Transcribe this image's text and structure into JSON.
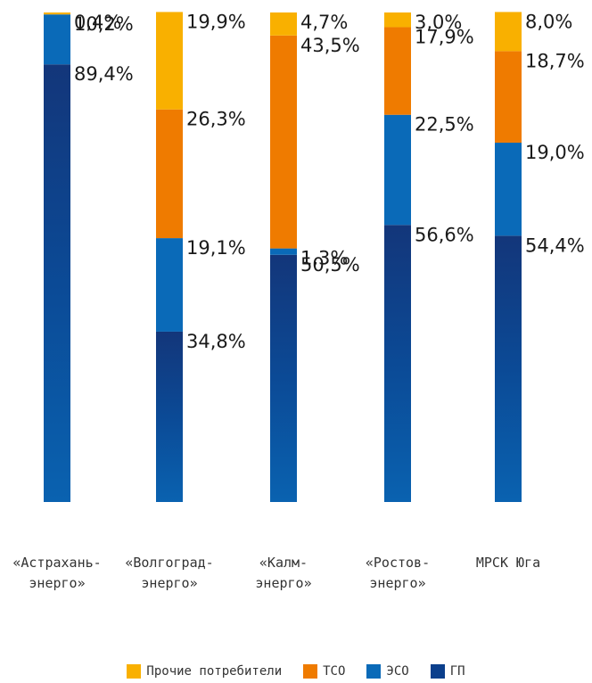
{
  "chart_data": {
    "type": "bar",
    "stacked": true,
    "normalized": true,
    "categories": [
      [
        "«Астрахань-",
        "энерго»"
      ],
      [
        "«Волгоград-",
        "энерго»"
      ],
      [
        "«Калм-",
        "энерго»"
      ],
      [
        "«Ростов-",
        "энерго»"
      ],
      [
        "МРСК Юга"
      ]
    ],
    "series": [
      {
        "name": "ГП",
        "color": "#0b3f8c",
        "values": [
          89.4,
          34.8,
          50.5,
          56.6,
          54.4
        ],
        "labels": [
          "89,4%",
          "34,8%",
          "50,5%",
          "56,6%",
          "54,4%"
        ]
      },
      {
        "name": "ЭСО",
        "color": "#0a6ab8",
        "values": [
          10.2,
          19.1,
          1.3,
          22.5,
          19.0
        ],
        "labels": [
          "10,2%",
          "19,1%",
          "1,3%",
          "22,5%",
          "19,0%"
        ]
      },
      {
        "name": "ТСО",
        "color": "#ef7b00",
        "values": [
          0.0,
          26.3,
          43.5,
          17.9,
          18.7
        ],
        "labels": [
          "",
          "26,3%",
          "43,5%",
          "17,9%",
          "18,7%"
        ]
      },
      {
        "name": "Прочие потребители",
        "color": "#f9b000",
        "values": [
          0.4,
          19.9,
          4.7,
          3.0,
          8.0
        ],
        "labels": [
          "0,4%",
          "19,9%",
          "4,7%",
          "3,0%",
          "8,0%"
        ]
      }
    ],
    "ylim": [
      0,
      100
    ],
    "grid": false,
    "legend_position": "bottom",
    "legend_order": [
      "Прочие потребители",
      "ТСО",
      "ЭСО",
      "ГП"
    ]
  }
}
